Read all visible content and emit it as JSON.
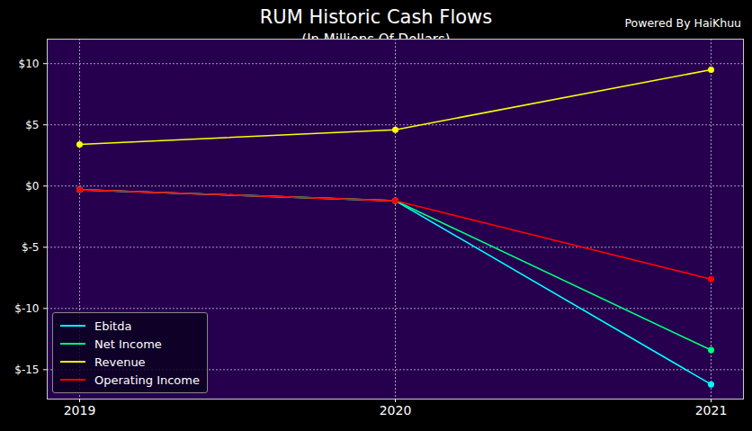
{
  "chart_data": {
    "type": "line",
    "title": "RUM Historic Cash Flows",
    "subtitle": "(In Millions Of Dollars)",
    "caption": "Powered By HaiKhuu",
    "categories": [
      "2019",
      "2020",
      "2021"
    ],
    "series": [
      {
        "name": "Ebitda",
        "color": "#00ffff",
        "values": [
          -0.3,
          -1.2,
          -16.2
        ]
      },
      {
        "name": "Net Income",
        "color": "#00ff7f",
        "values": [
          -0.3,
          -1.2,
          -13.4
        ]
      },
      {
        "name": "Revenue",
        "color": "#ffff00",
        "values": [
          3.4,
          4.6,
          9.5
        ]
      },
      {
        "name": "Operating Income",
        "color": "#ff0000",
        "values": [
          -0.3,
          -1.2,
          -7.6
        ]
      }
    ],
    "ylim": [
      -17.4,
      12
    ],
    "yticks": [
      {
        "value": -15,
        "label": "$-15"
      },
      {
        "value": -10,
        "label": "$-10"
      },
      {
        "value": -5,
        "label": "$-5"
      },
      {
        "value": 0,
        "label": "$0"
      },
      {
        "value": 5,
        "label": "$5"
      },
      {
        "value": 10,
        "label": "$10"
      }
    ],
    "grid": true,
    "legend": "lower left",
    "marker": "circle"
  }
}
